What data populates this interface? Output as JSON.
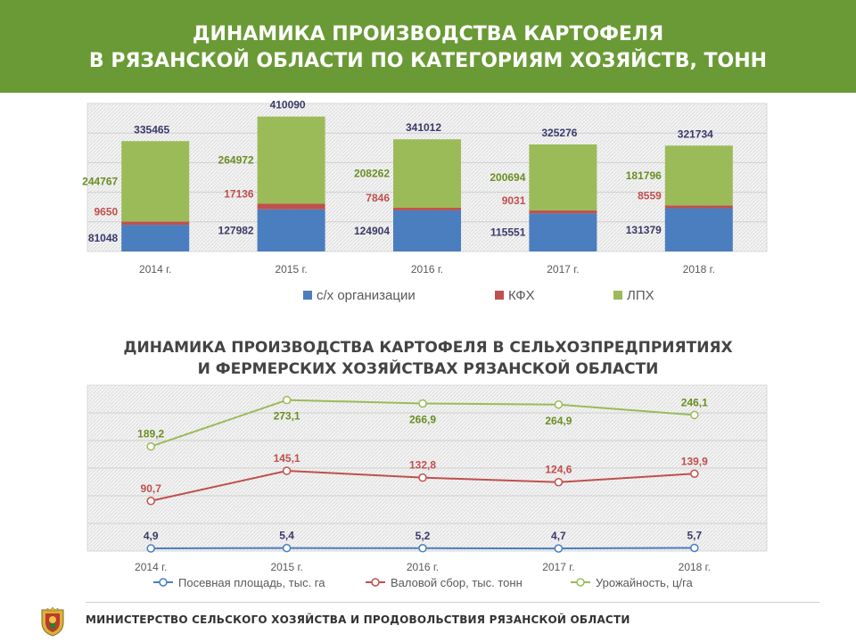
{
  "header": {
    "title_line1": "ДИНАМИКА ПРОИЗВОДСТВА КАРТОФЕЛЯ",
    "title_line2": "В РЯЗАНСКОЙ ОБЛАСТИ ПО КАТЕГОРИЯМ ХОЗЯЙСТВ, ТОНН"
  },
  "colors": {
    "header_bg": "#6a9a35",
    "agri_org": "#4a7ebf",
    "kfh": "#c0504d",
    "lph": "#9bbb59",
    "label_dark": "#3a3a6a"
  },
  "chart1": {
    "chart_data": {
      "type": "bar",
      "stacked": true,
      "categories": [
        "2014 г.",
        "2015 г.",
        "2016 г.",
        "2017 г.",
        "2018 г."
      ],
      "series": [
        {
          "name": "с/х организации",
          "values": [
            81048,
            127982,
            124904,
            115551,
            131379
          ]
        },
        {
          "name": "КФХ",
          "values": [
            9650,
            17136,
            7846,
            9031,
            8559
          ]
        },
        {
          "name": "ЛПХ",
          "values": [
            244767,
            264972,
            208262,
            200694,
            181796
          ]
        }
      ],
      "totals": [
        335465,
        410090,
        341012,
        325276,
        321734
      ],
      "legend_position": "bottom",
      "grid": true
    }
  },
  "chart2": {
    "title_line1": "ДИНАМИКА ПРОИЗВОДСТВА КАРТОФЕЛЯ В СЕЛЬХОЗПРЕДПРИЯТИЯХ",
    "title_line2": "И ФЕРМЕРСКИХ ХОЗЯЙСТВАХ РЯЗАНСКОЙ ОБЛАСТИ",
    "chart_data": {
      "type": "line",
      "categories": [
        "2014 г.",
        "2015 г.",
        "2016 г.",
        "2017 г.",
        "2018 г."
      ],
      "series": [
        {
          "name": "Посевная площадь, тыс. га",
          "values": [
            4.9,
            5.4,
            5.2,
            4.7,
            5.7
          ],
          "labels": [
            "4,9",
            "5,4",
            "5,2",
            "4,7",
            "5,7"
          ]
        },
        {
          "name": "Валовой сбор, тыс. тонн",
          "values": [
            90.7,
            145.1,
            132.8,
            124.6,
            139.9
          ],
          "labels": [
            "90,7",
            "145,1",
            "132,8",
            "124,6",
            "139,9"
          ]
        },
        {
          "name": "Урожайность, ц/га",
          "values": [
            189.2,
            273.1,
            266.9,
            264.9,
            246.1
          ],
          "labels": [
            "189,2",
            "273,1",
            "266,9",
            "264,9",
            "246,1"
          ]
        }
      ],
      "legend_position": "bottom",
      "grid": true
    }
  },
  "footer": {
    "text": "МИНИСТЕРСТВО СЕЛЬСКОГО ХОЗЯЙСТВА И ПРОДОВОЛЬСТВИЯ РЯЗАНСКОЙ ОБЛАСТИ",
    "emblem": "ryazan-coat-of-arms-icon"
  }
}
